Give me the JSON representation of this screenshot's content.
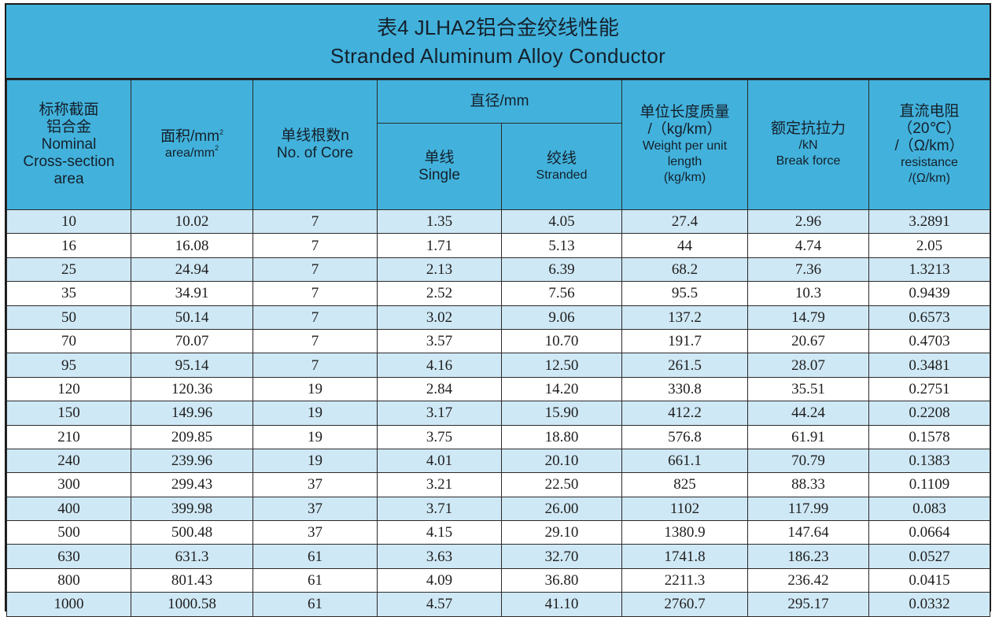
{
  "title": {
    "cn": "表4  JLHA2铝合金绞线性能",
    "en": "Stranded Aluminum Alloy Conductor"
  },
  "headers": {
    "nominal": {
      "cn1": "标称截面",
      "cn2": "铝合金",
      "en1": "Nominal",
      "en2": "Cross-section",
      "en3": "area"
    },
    "area": {
      "cn": "面积/mm",
      "en": "area/mm",
      "sup": "2"
    },
    "cores": {
      "cn": "单线根数n",
      "en": "No. of Core"
    },
    "diameter": {
      "cn": "直径/mm"
    },
    "single": {
      "cn": "单线",
      "en": "Single"
    },
    "stranded": {
      "cn": "绞线",
      "en": "Stranded"
    },
    "weight": {
      "cn": "单位长度质量",
      "unit": "/（kg/km）",
      "en1": "Weight per unit",
      "en2": "length",
      "en3": "(kg/km)"
    },
    "force": {
      "cn": "额定抗拉力",
      "unit": "/kN",
      "en": "Break force"
    },
    "resistance": {
      "cn": "直流电阻",
      "temp": "（20℃）",
      "unit": "/（Ω/km）",
      "en": "resistance",
      "en_unit": "/(Ω/km)"
    }
  },
  "rows": [
    [
      "10",
      "10.02",
      "7",
      "1.35",
      "4.05",
      "27.4",
      "2.96",
      "3.2891"
    ],
    [
      "16",
      "16.08",
      "7",
      "1.71",
      "5.13",
      "44",
      "4.74",
      "2.05"
    ],
    [
      "25",
      "24.94",
      "7",
      "2.13",
      "6.39",
      "68.2",
      "7.36",
      "1.3213"
    ],
    [
      "35",
      "34.91",
      "7",
      "2.52",
      "7.56",
      "95.5",
      "10.3",
      "0.9439"
    ],
    [
      "50",
      "50.14",
      "7",
      "3.02",
      "9.06",
      "137.2",
      "14.79",
      "0.6573"
    ],
    [
      "70",
      "70.07",
      "7",
      "3.57",
      "10.70",
      "191.7",
      "20.67",
      "0.4703"
    ],
    [
      "95",
      "95.14",
      "7",
      "4.16",
      "12.50",
      "261.5",
      "28.07",
      "0.3481"
    ],
    [
      "120",
      "120.36",
      "19",
      "2.84",
      "14.20",
      "330.8",
      "35.51",
      "0.2751"
    ],
    [
      "150",
      "149.96",
      "19",
      "3.17",
      "15.90",
      "412.2",
      "44.24",
      "0.2208"
    ],
    [
      "210",
      "209.85",
      "19",
      "3.75",
      "18.80",
      "576.8",
      "61.91",
      "0.1578"
    ],
    [
      "240",
      "239.96",
      "19",
      "4.01",
      "20.10",
      "661.1",
      "70.79",
      "0.1383"
    ],
    [
      "300",
      "299.43",
      "37",
      "3.21",
      "22.50",
      "825",
      "88.33",
      "0.1109"
    ],
    [
      "400",
      "399.98",
      "37",
      "3.71",
      "26.00",
      "1102",
      "117.99",
      "0.083"
    ],
    [
      "500",
      "500.48",
      "37",
      "4.15",
      "29.10",
      "1380.9",
      "147.64",
      "0.0664"
    ],
    [
      "630",
      "631.3",
      "61",
      "3.63",
      "32.70",
      "1741.8",
      "186.23",
      "0.0527"
    ],
    [
      "800",
      "801.43",
      "61",
      "4.09",
      "36.80",
      "2211.3",
      "236.42",
      "0.0415"
    ],
    [
      "1000",
      "1000.58",
      "61",
      "4.57",
      "41.10",
      "2760.7",
      "295.17",
      "0.0332"
    ]
  ],
  "colors": {
    "header_blue": "#42b2dc",
    "row_alt": "#cfe8f5",
    "border": "#1b1b1b"
  }
}
